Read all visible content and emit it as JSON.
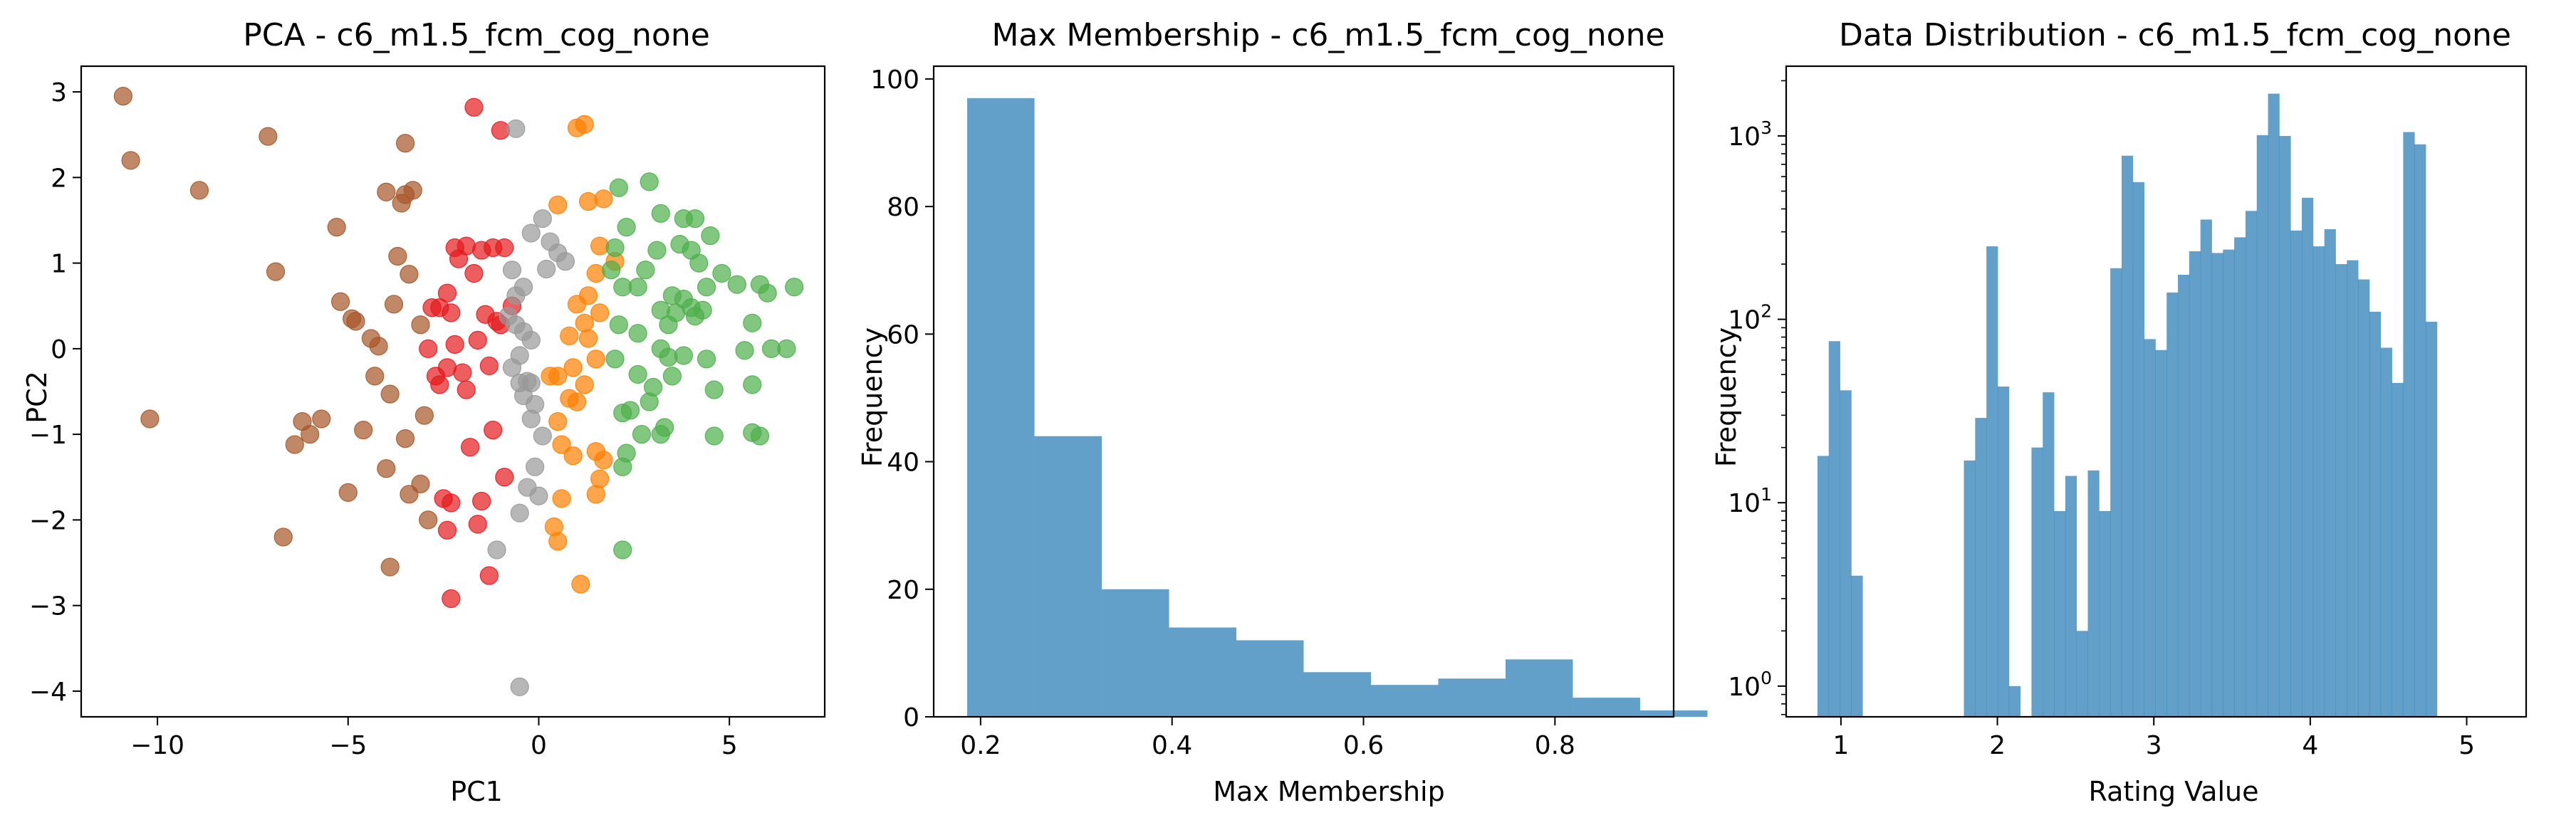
{
  "chart_data": [
    {
      "type": "scatter",
      "title": "PCA - c6_m1.5_fcm_cog_none",
      "xlabel": "PC1",
      "ylabel": "PC2",
      "xlim": [
        -12,
        7.5
      ],
      "ylim": [
        -4.3,
        3.3
      ],
      "xticks": [
        -10,
        -5,
        0,
        5
      ],
      "yticks": [
        -4,
        -3,
        -2,
        -1,
        0,
        1,
        2,
        3
      ],
      "grid": false,
      "marker_alpha": 0.7,
      "series": [
        {
          "color": "#a65628",
          "points": [
            [
              -10.9,
              2.95
            ],
            [
              -10.7,
              2.2
            ],
            [
              -8.9,
              1.85
            ],
            [
              -7.1,
              2.48
            ],
            [
              -6.9,
              0.9
            ],
            [
              -6.2,
              -0.85
            ],
            [
              -6.4,
              -1.12
            ],
            [
              -6.0,
              -1.0
            ],
            [
              -5.7,
              -0.82
            ],
            [
              -5.3,
              1.42
            ],
            [
              -5.2,
              0.55
            ],
            [
              -4.9,
              0.35
            ],
            [
              -4.8,
              0.32
            ],
            [
              -5.0,
              -1.68
            ],
            [
              -4.6,
              -0.95
            ],
            [
              -4.4,
              0.12
            ],
            [
              -4.3,
              -0.32
            ],
            [
              -4.2,
              0.03
            ],
            [
              -4.0,
              1.83
            ],
            [
              -4.0,
              -1.4
            ],
            [
              -3.9,
              -2.55
            ],
            [
              -3.9,
              -0.53
            ],
            [
              -3.8,
              0.52
            ],
            [
              -3.7,
              1.08
            ],
            [
              -3.6,
              1.7
            ],
            [
              -3.5,
              1.8
            ],
            [
              -3.5,
              2.4
            ],
            [
              -3.4,
              0.87
            ],
            [
              -3.3,
              1.85
            ],
            [
              -3.5,
              -1.05
            ],
            [
              -3.4,
              -1.7
            ],
            [
              -3.1,
              -1.58
            ],
            [
              -3.0,
              -0.78
            ],
            [
              -3.1,
              0.28
            ],
            [
              -2.9,
              -2.0
            ],
            [
              -6.7,
              -2.2
            ],
            [
              -10.2,
              -0.82
            ]
          ]
        },
        {
          "color": "#e41a1c",
          "points": [
            [
              -1.7,
              2.82
            ],
            [
              -1.0,
              2.55
            ],
            [
              -2.2,
              1.18
            ],
            [
              -2.6,
              0.48
            ],
            [
              -2.8,
              0.48
            ],
            [
              -2.3,
              0.42
            ],
            [
              -2.4,
              0.65
            ],
            [
              -2.1,
              1.05
            ],
            [
              -1.9,
              1.2
            ],
            [
              -1.7,
              0.88
            ],
            [
              -1.5,
              1.15
            ],
            [
              -1.2,
              1.18
            ],
            [
              -0.9,
              1.18
            ],
            [
              -1.4,
              0.4
            ],
            [
              -1.1,
              0.32
            ],
            [
              -2.9,
              0.0
            ],
            [
              -2.7,
              -0.32
            ],
            [
              -2.6,
              -0.42
            ],
            [
              -2.4,
              -0.22
            ],
            [
              -2.2,
              0.05
            ],
            [
              -2.0,
              -0.28
            ],
            [
              -1.9,
              -0.48
            ],
            [
              -1.6,
              0.1
            ],
            [
              -1.3,
              -0.2
            ],
            [
              -1.0,
              0.28
            ],
            [
              -0.7,
              0.5
            ],
            [
              -1.8,
              -1.15
            ],
            [
              -2.5,
              -1.75
            ],
            [
              -2.3,
              -1.8
            ],
            [
              -2.4,
              -2.12
            ],
            [
              -1.5,
              -1.78
            ],
            [
              -1.6,
              -2.05
            ],
            [
              -1.3,
              -2.65
            ],
            [
              -2.3,
              -2.92
            ],
            [
              -0.9,
              -1.5
            ],
            [
              -1.2,
              -0.95
            ]
          ]
        },
        {
          "color": "#999999",
          "points": [
            [
              -0.6,
              2.57
            ],
            [
              0.1,
              1.52
            ],
            [
              -0.2,
              1.35
            ],
            [
              0.3,
              1.25
            ],
            [
              0.5,
              1.12
            ],
            [
              0.7,
              1.02
            ],
            [
              -0.7,
              0.92
            ],
            [
              0.2,
              0.93
            ],
            [
              -0.4,
              0.72
            ],
            [
              -0.6,
              0.62
            ],
            [
              -0.8,
              0.38
            ],
            [
              -0.6,
              0.28
            ],
            [
              -0.4,
              0.2
            ],
            [
              -0.2,
              0.1
            ],
            [
              -0.5,
              -0.08
            ],
            [
              -0.7,
              -0.22
            ],
            [
              -0.3,
              -0.38
            ],
            [
              -0.5,
              -0.4
            ],
            [
              -0.2,
              -0.4
            ],
            [
              -0.4,
              -0.55
            ],
            [
              -0.1,
              -0.65
            ],
            [
              -0.2,
              -0.82
            ],
            [
              0.1,
              -1.02
            ],
            [
              -0.1,
              -1.38
            ],
            [
              -0.3,
              -1.62
            ],
            [
              0.0,
              -1.72
            ],
            [
              -0.5,
              -1.92
            ],
            [
              -1.1,
              -2.35
            ],
            [
              -0.5,
              -3.95
            ]
          ]
        },
        {
          "color": "#ff7f00",
          "points": [
            [
              1.0,
              2.58
            ],
            [
              1.2,
              2.62
            ],
            [
              1.7,
              1.75
            ],
            [
              1.3,
              1.72
            ],
            [
              0.5,
              1.68
            ],
            [
              1.6,
              1.2
            ],
            [
              2.0,
              1.02
            ],
            [
              1.5,
              0.88
            ],
            [
              1.3,
              0.62
            ],
            [
              1.0,
              0.52
            ],
            [
              1.6,
              0.42
            ],
            [
              1.2,
              0.3
            ],
            [
              1.3,
              0.12
            ],
            [
              0.8,
              0.15
            ],
            [
              1.5,
              -0.12
            ],
            [
              0.9,
              -0.22
            ],
            [
              0.5,
              -0.32
            ],
            [
              0.3,
              -0.32
            ],
            [
              1.2,
              -0.42
            ],
            [
              0.8,
              -0.58
            ],
            [
              1.0,
              -0.62
            ],
            [
              0.6,
              -1.12
            ],
            [
              0.9,
              -1.25
            ],
            [
              1.5,
              -1.2
            ],
            [
              1.7,
              -1.3
            ],
            [
              1.6,
              -1.52
            ],
            [
              1.5,
              -1.7
            ],
            [
              0.6,
              -1.75
            ],
            [
              0.4,
              -2.08
            ],
            [
              0.5,
              -2.25
            ],
            [
              1.1,
              -2.75
            ],
            [
              0.5,
              -0.85
            ]
          ]
        },
        {
          "color": "#4daf4a",
          "points": [
            [
              2.1,
              1.88
            ],
            [
              2.9,
              1.95
            ],
            [
              3.2,
              1.58
            ],
            [
              3.8,
              1.52
            ],
            [
              4.1,
              1.52
            ],
            [
              2.3,
              1.42
            ],
            [
              4.5,
              1.32
            ],
            [
              3.7,
              1.22
            ],
            [
              2.0,
              1.18
            ],
            [
              3.1,
              1.15
            ],
            [
              4.0,
              1.15
            ],
            [
              4.2,
              1.0
            ],
            [
              1.9,
              0.92
            ],
            [
              2.8,
              0.92
            ],
            [
              4.8,
              0.88
            ],
            [
              2.2,
              0.72
            ],
            [
              2.6,
              0.72
            ],
            [
              3.5,
              0.62
            ],
            [
              3.8,
              0.58
            ],
            [
              4.4,
              0.72
            ],
            [
              5.8,
              0.75
            ],
            [
              6.0,
              0.65
            ],
            [
              6.7,
              0.72
            ],
            [
              5.2,
              0.75
            ],
            [
              3.2,
              0.45
            ],
            [
              3.6,
              0.42
            ],
            [
              4.0,
              0.48
            ],
            [
              4.1,
              0.38
            ],
            [
              5.6,
              0.3
            ],
            [
              2.1,
              0.28
            ],
            [
              3.4,
              0.28
            ],
            [
              2.6,
              0.18
            ],
            [
              2.0,
              -0.12
            ],
            [
              3.4,
              -0.1
            ],
            [
              3.8,
              -0.08
            ],
            [
              3.2,
              0.0
            ],
            [
              4.4,
              -0.12
            ],
            [
              5.4,
              -0.02
            ],
            [
              6.1,
              0.0
            ],
            [
              6.5,
              0.0
            ],
            [
              2.6,
              -0.3
            ],
            [
              3.0,
              -0.45
            ],
            [
              3.5,
              -0.32
            ],
            [
              2.9,
              -0.62
            ],
            [
              2.4,
              -0.72
            ],
            [
              2.2,
              -0.75
            ],
            [
              3.3,
              -0.92
            ],
            [
              3.2,
              -1.0
            ],
            [
              2.7,
              -1.0
            ],
            [
              4.6,
              -0.48
            ],
            [
              5.6,
              -0.42
            ],
            [
              4.6,
              -1.02
            ],
            [
              5.6,
              -0.98
            ],
            [
              5.8,
              -1.02
            ],
            [
              2.3,
              -1.22
            ],
            [
              2.2,
              -1.38
            ],
            [
              2.2,
              -2.35
            ],
            [
              4.3,
              0.45
            ]
          ]
        }
      ]
    },
    {
      "type": "bar",
      "title": "Max Membership - c6_m1.5_fcm_cog_none",
      "xlabel": "Max Membership",
      "ylabel": "Frequency",
      "xlim": [
        0.151,
        0.924
      ],
      "ylim": [
        0,
        102
      ],
      "xticks": [
        0.2,
        0.4,
        0.6,
        0.8
      ],
      "yticks": [
        0,
        20,
        40,
        60,
        80,
        100
      ],
      "color": "#1f77b4",
      "alpha": 0.7,
      "bin_edges": [
        0.186,
        0.2563,
        0.3266,
        0.3969,
        0.4672,
        0.5375,
        0.6078,
        0.6781,
        0.7484,
        0.8187,
        0.889
      ],
      "values": [
        97,
        44,
        20,
        14,
        12,
        7,
        5,
        6,
        9,
        3,
        1
      ]
    },
    {
      "type": "bar",
      "title": "Data Distribution - c6_m1.5_fcm_cog_none",
      "xlabel": "Rating Value",
      "ylabel": "Frequency",
      "xlim": [
        0.65,
        5.38
      ],
      "ylim": [
        0.68,
        2400
      ],
      "yscale": "log",
      "xticks": [
        1,
        2,
        3,
        4,
        5
      ],
      "yticks": [
        {
          "value": 1,
          "label": "10",
          "exp": "0"
        },
        {
          "value": 10,
          "label": "10",
          "exp": "1"
        },
        {
          "value": 100,
          "label": "10",
          "exp": "2"
        },
        {
          "value": 1000,
          "label": "10",
          "exp": "3"
        }
      ],
      "color": "#1f77b4",
      "alpha": 0.7,
      "bin_start": 0.85,
      "bin_width": 0.072,
      "values": [
        18,
        76,
        41,
        4,
        0,
        0,
        0,
        0,
        0,
        0,
        0,
        0,
        0,
        17,
        29,
        250,
        43,
        1,
        0,
        20,
        40,
        9,
        14,
        2,
        15,
        9,
        190,
        780,
        560,
        78,
        68,
        140,
        175,
        235,
        350,
        230,
        240,
        280,
        390,
        1010,
        1700,
        1000,
        305,
        460,
        250,
        310,
        200,
        210,
        165,
        110,
        70,
        45,
        1050,
        900,
        97
      ]
    }
  ]
}
